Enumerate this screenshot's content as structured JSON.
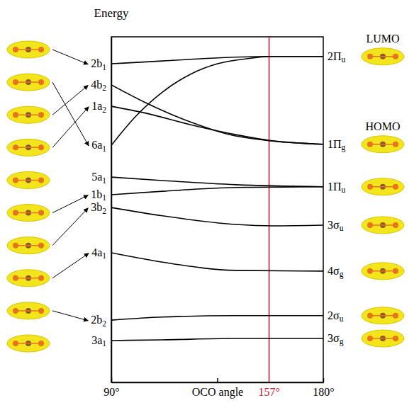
{
  "chart_data": {
    "type": "line",
    "y_label": "Energy",
    "xlim": [
      90,
      180
    ],
    "xticks": [
      {
        "value": 90,
        "label": "90°"
      },
      {
        "value": 135,
        "label": "OCO angle"
      },
      {
        "value": 180,
        "label": "180°"
      }
    ],
    "ylim": [
      0,
      100
    ],
    "yticks": [],
    "tick_labels": "x",
    "color": "#000000",
    "annotations": [
      {
        "x": 157,
        "label": "157°",
        "color": "#c8102e"
      }
    ],
    "series": [
      {
        "name": "2b1",
        "end_label": "2Πu",
        "tag": "LUMO",
        "x": [
          90,
          111.7,
          135.1,
          158.5,
          180
        ],
        "values": [
          92.2,
          93.0,
          93.9,
          94.3,
          94.3
        ]
      },
      {
        "name": "6a1",
        "x": [
          90,
          100.1,
          111.7,
          123.4,
          135.1,
          146.8,
          158.5,
          180
        ],
        "values": [
          68.6,
          76.8,
          84.0,
          89.1,
          92.2,
          93.6,
          94.3,
          94.3
        ]
      },
      {
        "name": "4b2",
        "end_label": "1Πg",
        "tag": "HOMO",
        "x": [
          90,
          104.7,
          123.4,
          142.8,
          180
        ],
        "values": [
          86.1,
          80.9,
          75.4,
          71.3,
          68.9
        ]
      },
      {
        "name": "1a2",
        "x": [
          90,
          104.7,
          123.4,
          142.8,
          158.5,
          180
        ],
        "values": [
          79.9,
          77.9,
          74.6,
          71.7,
          69.9,
          68.9
        ]
      },
      {
        "name": "5a1",
        "end_label": "1Πu",
        "x": [
          90,
          111.7,
          142.8,
          180
        ],
        "values": [
          59.4,
          58.4,
          57.2,
          56.6
        ]
      },
      {
        "name": "1b1",
        "x": [
          90,
          111.7,
          142.8,
          180
        ],
        "values": [
          54.3,
          55.3,
          56.4,
          56.6
        ]
      },
      {
        "name": "3b2",
        "end_label": "3σu",
        "x": [
          90,
          111.7,
          142.8,
          158.5,
          180
        ],
        "values": [
          50.6,
          48.2,
          45.7,
          45.3,
          45.5
        ]
      },
      {
        "name": "4a1",
        "end_label": "4σg",
        "x": [
          90,
          111.7,
          142.8,
          180
        ],
        "values": [
          37.5,
          34.8,
          32.4,
          32.2
        ]
      },
      {
        "name": "2b2",
        "end_label": "2σu",
        "x": [
          90,
          111.7,
          142.8,
          180
        ],
        "values": [
          18.0,
          18.9,
          19.3,
          19.3
        ]
      },
      {
        "name": "3a1",
        "end_label": "3σg",
        "x": [
          90,
          111.7,
          142.8,
          180
        ],
        "values": [
          12.1,
          12.3,
          12.7,
          12.7
        ]
      }
    ]
  }
}
